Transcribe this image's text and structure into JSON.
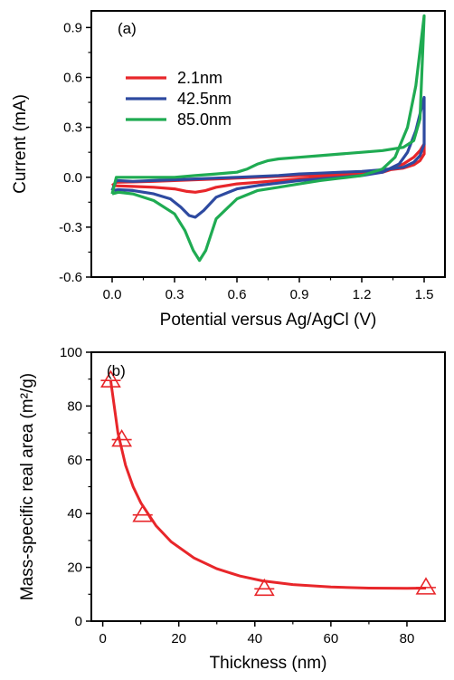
{
  "chart_data": [
    {
      "type": "line",
      "panel_label": "(a)",
      "xlabel": "Potential versus Ag/AgCl (V)",
      "ylabel": "Current (mA)",
      "xlim": [
        -0.1,
        1.6
      ],
      "ylim": [
        -0.6,
        1.0
      ],
      "xticks": [
        0.0,
        0.3,
        0.6,
        0.9,
        1.2,
        1.5
      ],
      "xtick_labels": [
        "0.0",
        "0.3",
        "0.6",
        "0.9",
        "1.2",
        "1.5"
      ],
      "yticks": [
        -0.6,
        -0.3,
        0.0,
        0.3,
        0.6,
        0.9
      ],
      "ytick_labels": [
        "-0.6",
        "-0.3",
        "0.0",
        "0.3",
        "0.6",
        "0.9"
      ],
      "legend_position": "upper-left",
      "series": [
        {
          "name": "2.1nm",
          "color": "#e8262a",
          "x": [
            0.0,
            0.03,
            0.1,
            0.2,
            0.3,
            0.36,
            0.4,
            0.45,
            0.5,
            0.6,
            0.7,
            0.8,
            0.9,
            1.0,
            1.1,
            1.2,
            1.3,
            1.35,
            1.4,
            1.45,
            1.48,
            1.5,
            1.5,
            1.48,
            1.45,
            1.4,
            1.3,
            1.2,
            1.1,
            1.0,
            0.9,
            0.8,
            0.7,
            0.6,
            0.5,
            0.4,
            0.3,
            0.2,
            0.1,
            0.02,
            0.0
          ],
          "y": [
            -0.05,
            -0.052,
            -0.055,
            -0.06,
            -0.07,
            -0.085,
            -0.09,
            -0.08,
            -0.06,
            -0.04,
            -0.03,
            -0.02,
            -0.01,
            0.0,
            0.01,
            0.02,
            0.03,
            0.05,
            0.08,
            0.12,
            0.16,
            0.2,
            0.14,
            0.1,
            0.075,
            0.055,
            0.04,
            0.03,
            0.02,
            0.015,
            0.01,
            0.005,
            0.0,
            -0.005,
            -0.01,
            -0.015,
            -0.02,
            -0.025,
            -0.028,
            -0.03,
            -0.05
          ]
        },
        {
          "name": "42.5nm",
          "color": "#2e4aa0",
          "x": [
            0.0,
            0.03,
            0.1,
            0.2,
            0.28,
            0.33,
            0.37,
            0.4,
            0.44,
            0.5,
            0.6,
            0.7,
            0.8,
            0.9,
            1.0,
            1.1,
            1.2,
            1.3,
            1.38,
            1.42,
            1.46,
            1.5,
            1.5,
            1.48,
            1.45,
            1.4,
            1.3,
            1.2,
            1.1,
            1.0,
            0.9,
            0.8,
            0.7,
            0.6,
            0.5,
            0.4,
            0.3,
            0.2,
            0.1,
            0.02,
            0.0
          ],
          "y": [
            -0.08,
            -0.075,
            -0.08,
            -0.1,
            -0.13,
            -0.18,
            -0.23,
            -0.24,
            -0.2,
            -0.12,
            -0.07,
            -0.05,
            -0.035,
            -0.02,
            -0.01,
            0.0,
            0.01,
            0.03,
            0.08,
            0.15,
            0.28,
            0.48,
            0.2,
            0.13,
            0.09,
            0.06,
            0.045,
            0.035,
            0.03,
            0.025,
            0.02,
            0.01,
            0.005,
            0.0,
            -0.005,
            -0.01,
            -0.015,
            -0.02,
            -0.025,
            -0.02,
            -0.08
          ]
        },
        {
          "name": "85.0nm",
          "color": "#1fab52",
          "x": [
            0.0,
            0.03,
            0.1,
            0.2,
            0.3,
            0.35,
            0.39,
            0.42,
            0.45,
            0.5,
            0.6,
            0.7,
            0.8,
            0.9,
            1.0,
            1.1,
            1.2,
            1.3,
            1.36,
            1.42,
            1.46,
            1.5,
            1.48,
            1.45,
            1.4,
            1.3,
            1.2,
            1.1,
            1.0,
            0.9,
            0.8,
            0.75,
            0.7,
            0.65,
            0.6,
            0.5,
            0.4,
            0.3,
            0.2,
            0.1,
            0.02,
            0.0
          ],
          "y": [
            -0.1,
            -0.09,
            -0.1,
            -0.14,
            -0.22,
            -0.32,
            -0.44,
            -0.5,
            -0.44,
            -0.25,
            -0.13,
            -0.08,
            -0.06,
            -0.04,
            -0.02,
            -0.005,
            0.01,
            0.05,
            0.12,
            0.3,
            0.55,
            0.97,
            0.35,
            0.22,
            0.18,
            0.16,
            0.15,
            0.14,
            0.13,
            0.12,
            0.11,
            0.1,
            0.08,
            0.05,
            0.03,
            0.02,
            0.01,
            0.0,
            0.0,
            0.0,
            0.0,
            -0.1
          ]
        }
      ]
    },
    {
      "type": "scatter",
      "panel_label": "(b)",
      "xlabel": "Thickness (nm)",
      "ylabel": "Mass-specific real area (m²/g)",
      "xlim": [
        -3,
        90
      ],
      "ylim": [
        0,
        100
      ],
      "xticks": [
        0,
        20,
        40,
        60,
        80
      ],
      "xtick_labels": [
        "0",
        "20",
        "40",
        "60",
        "80"
      ],
      "yticks": [
        0,
        20,
        40,
        60,
        80,
        100
      ],
      "ytick_labels": [
        "0",
        "20",
        "40",
        "60",
        "80",
        "100"
      ],
      "marker_color": "#e8262a",
      "points": {
        "x": [
          2.1,
          5.0,
          10.5,
          42.5,
          85.0
        ],
        "y": [
          89.5,
          67.5,
          39.5,
          12.0,
          12.5
        ]
      },
      "fit_curve": {
        "x": [
          2.1,
          4,
          6,
          8,
          10,
          14,
          18,
          24,
          30,
          36,
          42,
          50,
          60,
          70,
          80,
          85
        ],
        "y": [
          89.5,
          70,
          58,
          50,
          44,
          35.5,
          29.5,
          23.5,
          19.5,
          16.8,
          15.0,
          13.6,
          12.7,
          12.3,
          12.2,
          12.3
        ]
      }
    }
  ]
}
